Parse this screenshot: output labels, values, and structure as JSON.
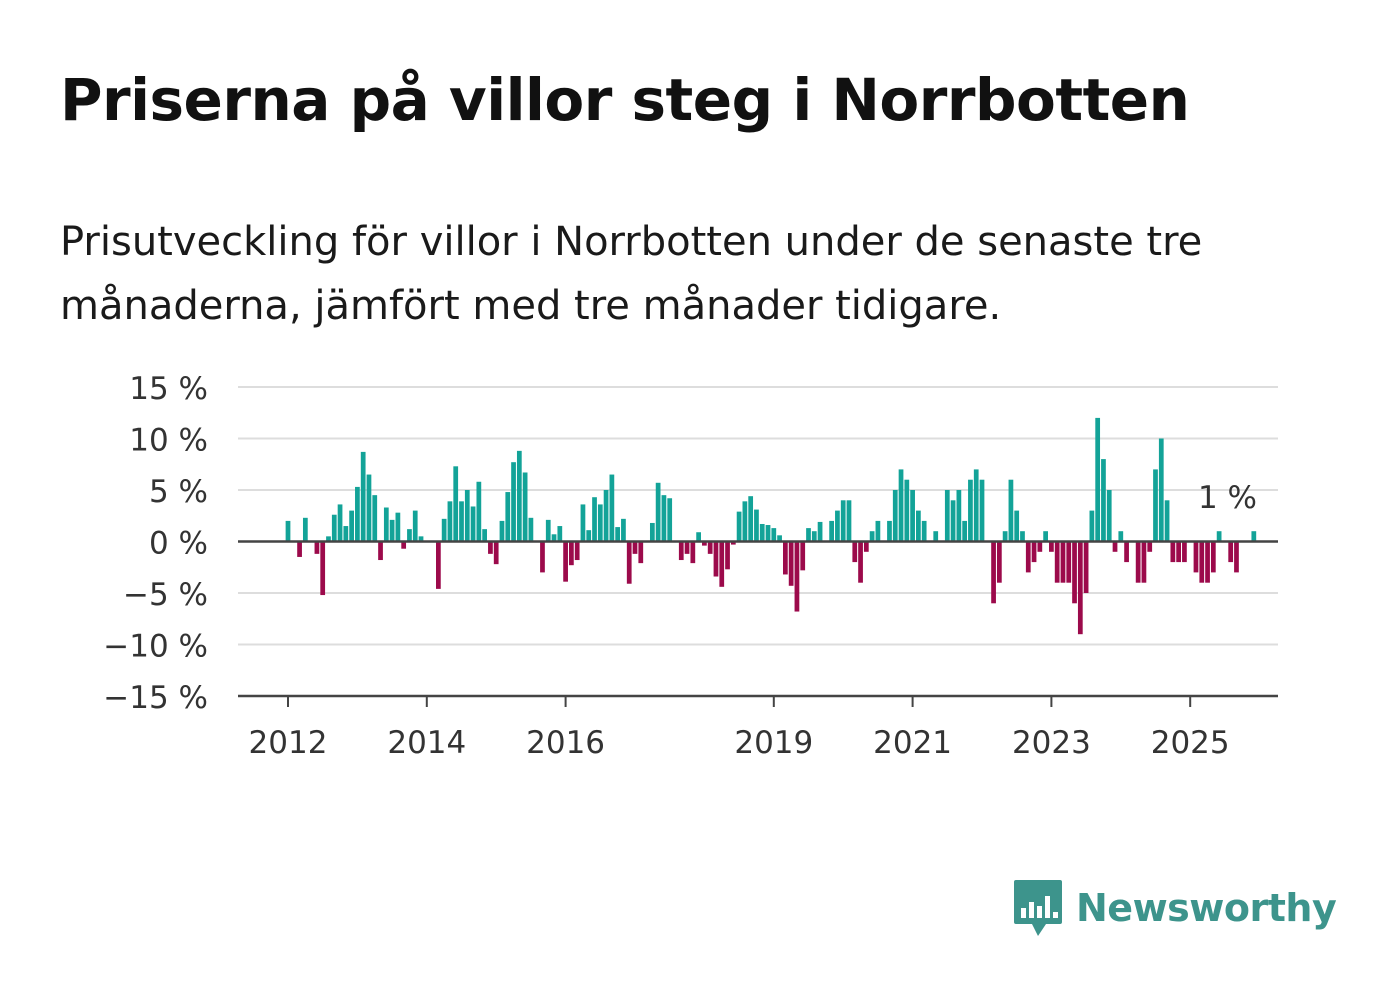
{
  "title": "Priserna på villor steg i Norrbotten",
  "subtitle": "Prisutveckling för villor i Norrbotten under de senaste tre månaderna, jämfört med tre månader tidigare.",
  "brand": {
    "name": "Newsworthy",
    "logo_icon": "bar-chart-speech-bubble-icon"
  },
  "colors": {
    "positive": "#13a398",
    "negative": "#9c0a4b",
    "grid": "#dddddd",
    "axis": "#444444",
    "brand": "#3d948c"
  },
  "chart_data": {
    "type": "bar",
    "start": "2012-01",
    "frequency": "monthly",
    "unit": "%",
    "ylim": [
      -15,
      15
    ],
    "y_ticks": [
      15,
      10,
      5,
      0,
      -5,
      -10,
      -15
    ],
    "y_tick_labels": [
      "15 %",
      "10 %",
      "5 %",
      "0 %",
      "−5 %",
      "−10 %",
      "−15 %"
    ],
    "x_ticks": [
      2012,
      2014,
      2016,
      2019,
      2021,
      2023,
      2025
    ],
    "x_tick_labels": [
      "2012",
      "2014",
      "2016",
      "2019",
      "2021",
      "2023",
      "2025"
    ],
    "annotation": "1 %",
    "grid": true,
    "values": [
      2,
      0,
      -1.5,
      2.3,
      0,
      -1.2,
      -5.2,
      0.5,
      2.6,
      3.6,
      1.5,
      3,
      5.3,
      8.7,
      6.5,
      4.5,
      -1.8,
      3.3,
      2.1,
      2.8,
      -0.7,
      1.2,
      3,
      0.5,
      0,
      0,
      -4.6,
      2.2,
      3.9,
      7.3,
      3.9,
      5,
      3.4,
      5.8,
      1.2,
      -1.2,
      -2.2,
      2,
      4.8,
      7.7,
      8.8,
      6.7,
      2.3,
      0,
      -3,
      2.1,
      0.7,
      1.5,
      -3.9,
      -2.3,
      -1.8,
      3.6,
      1.1,
      4.3,
      3.6,
      5,
      6.5,
      1.4,
      2.2,
      -4.1,
      -1.2,
      -2.1,
      0,
      1.8,
      5.7,
      4.5,
      4.2,
      0,
      -1.8,
      -1.2,
      -2.1,
      0.9,
      -0.4,
      -1.2,
      -3.4,
      -4.4,
      -2.7,
      -0.3,
      2.9,
      3.9,
      4.4,
      3.1,
      1.7,
      1.6,
      1.3,
      0.6,
      -3.2,
      -4.3,
      -6.8,
      -2.8,
      1.3,
      1,
      1.9,
      0,
      2,
      3,
      4,
      4,
      -2,
      -4,
      -1,
      1,
      2,
      0,
      2,
      5,
      7,
      6,
      5,
      3,
      2,
      0,
      1,
      0,
      5,
      4,
      5,
      2,
      6,
      7,
      6,
      0,
      -6,
      -4,
      1,
      6,
      3,
      1,
      -3,
      -2,
      -1,
      1,
      -1,
      -4,
      -4,
      -4,
      -6,
      -9,
      -5,
      3,
      12,
      8,
      5,
      -1,
      1,
      -2,
      0,
      -4,
      -4,
      -1,
      7,
      10,
      4,
      -2,
      -2,
      -2,
      0,
      -3,
      -4,
      -4,
      -3,
      1,
      0,
      -2,
      -3,
      0,
      0,
      1
    ]
  }
}
